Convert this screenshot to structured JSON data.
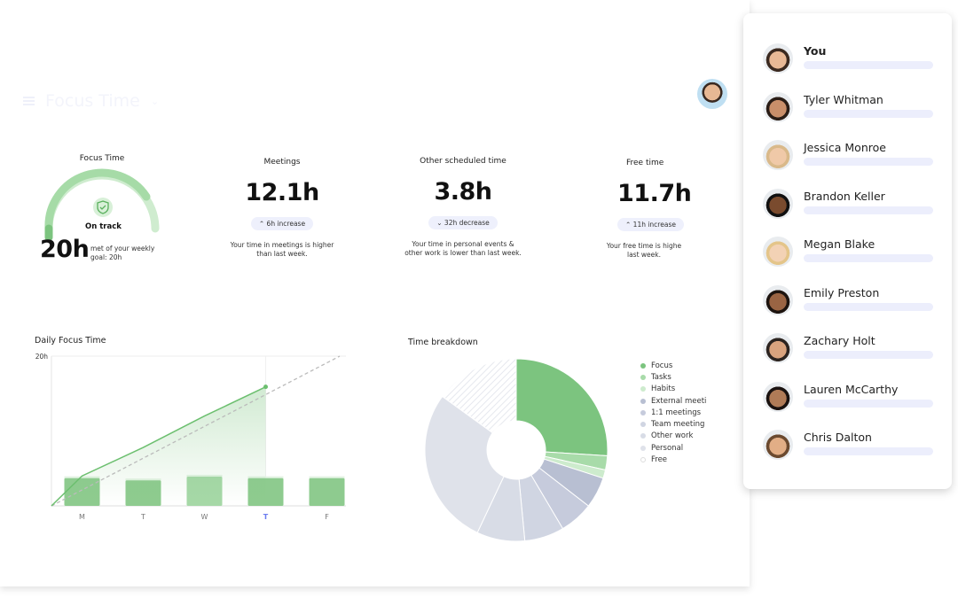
{
  "header": {
    "title": "Focus Time",
    "menu_icon": "hamburger-icon",
    "dropdown_icon": "chevron-down-icon"
  },
  "colors": {
    "accent": "#7cc47f",
    "pill": "#eef0fc",
    "today": "#6b7cf0"
  },
  "focus": {
    "title": "Focus Time",
    "status": "On track",
    "value": "20h",
    "note": "met of your weekly goal: 20h",
    "progress": 1.0
  },
  "stats": [
    {
      "title": "Meetings",
      "value": "12.1h",
      "change": "⌃ 6h increase",
      "desc": "Your time in meetings is higher than last week."
    },
    {
      "title": "Other scheduled time",
      "value": "3.8h",
      "change": "⌄ 32h decrease",
      "desc": "Your time in personal events & other work is lower than last week."
    },
    {
      "title": "Free time",
      "value": "11.7h",
      "change": "⌃ 11h increase",
      "desc": "Your free time is highe last week."
    }
  ],
  "chart_data": [
    {
      "type": "bar",
      "title": "Daily Focus Time",
      "categories": [
        "M",
        "T",
        "W",
        "T",
        "F"
      ],
      "ytick": "20h",
      "ylim": [
        0,
        20
      ],
      "bars": [
        3.7,
        3.4,
        3.9,
        3.7,
        3.7
      ],
      "cumulative_line": {
        "x": [
          0,
          0.5,
          1.5,
          2.5,
          3.5
        ],
        "y": [
          0,
          4,
          7.8,
          12,
          15.9
        ]
      },
      "goal_line": {
        "x": [
          0,
          5
        ],
        "y": [
          0,
          20
        ]
      },
      "highlight": "T"
    },
    {
      "type": "pie",
      "title": "Time breakdown",
      "donut": true,
      "slices": [
        {
          "name": "Focus",
          "value": 26,
          "color": "#7cc47f"
        },
        {
          "name": "Tasks",
          "value": 2.5,
          "color": "#a8dba9"
        },
        {
          "name": "Habits",
          "value": 1.5,
          "color": "#cdebcd"
        },
        {
          "name": "External meeti",
          "value": 5.5,
          "color": "#b8bfd2"
        },
        {
          "name": "1:1 meetings",
          "value": 6,
          "color": "#c6cbdc"
        },
        {
          "name": "Team meeting",
          "value": 7,
          "color": "#d0d5e2"
        },
        {
          "name": "Other work",
          "value": 8.5,
          "color": "#d8dce6"
        },
        {
          "name": "Personal",
          "value": 28,
          "color": "#dfe2ea"
        },
        {
          "name": "Free",
          "value": 15,
          "color": "hatch"
        }
      ]
    }
  ],
  "people": [
    "You",
    "Tyler Whitman",
    "Jessica Monroe",
    "Brandon Keller",
    "Megan Blake",
    "Emily Preston",
    "Zachary Holt",
    "Lauren McCarthy",
    "Chris Dalton"
  ]
}
